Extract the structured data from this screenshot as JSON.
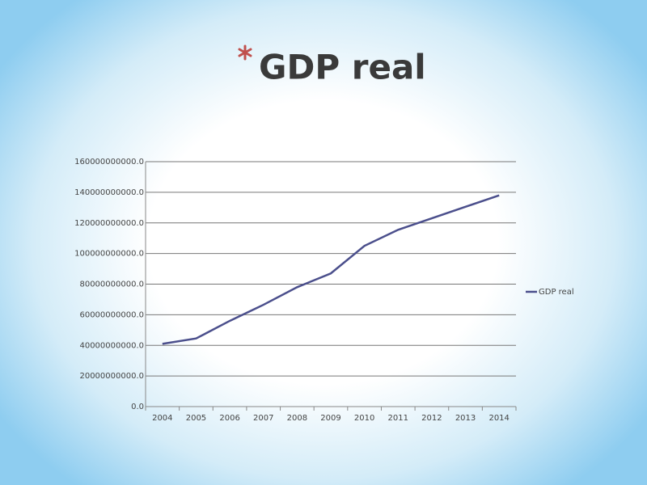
{
  "chart_data": {
    "type": "line",
    "title": "GDP real",
    "categories": [
      "2004",
      "2005",
      "2006",
      "2007",
      "2008",
      "2009",
      "2010",
      "2011",
      "2012",
      "2013",
      "2014"
    ],
    "series": [
      {
        "name": "GDP real",
        "color": "#4b4f8c",
        "values": [
          41000000000,
          44500000000,
          56000000000,
          66500000000,
          78000000000,
          87000000000,
          105000000000,
          115500000000,
          123000000000,
          130500000000,
          138000000000
        ]
      }
    ],
    "ylim": [
      0,
      160000000000
    ],
    "yticks": [
      {
        "value": 0,
        "label": "0.0"
      },
      {
        "value": 20000000000,
        "label": "20000000000.0"
      },
      {
        "value": 40000000000,
        "label": "40000000000.0"
      },
      {
        "value": 60000000000,
        "label": "60000000000.0"
      },
      {
        "value": 80000000000,
        "label": "80000000000.0"
      },
      {
        "value": 100000000000,
        "label": "100000000000.0"
      },
      {
        "value": 120000000000,
        "label": "120000000000.0"
      },
      {
        "value": 140000000000,
        "label": "140000000000.0"
      },
      {
        "value": 160000000000,
        "label": "160000000000.0"
      }
    ],
    "grid": true,
    "legend": "right"
  }
}
